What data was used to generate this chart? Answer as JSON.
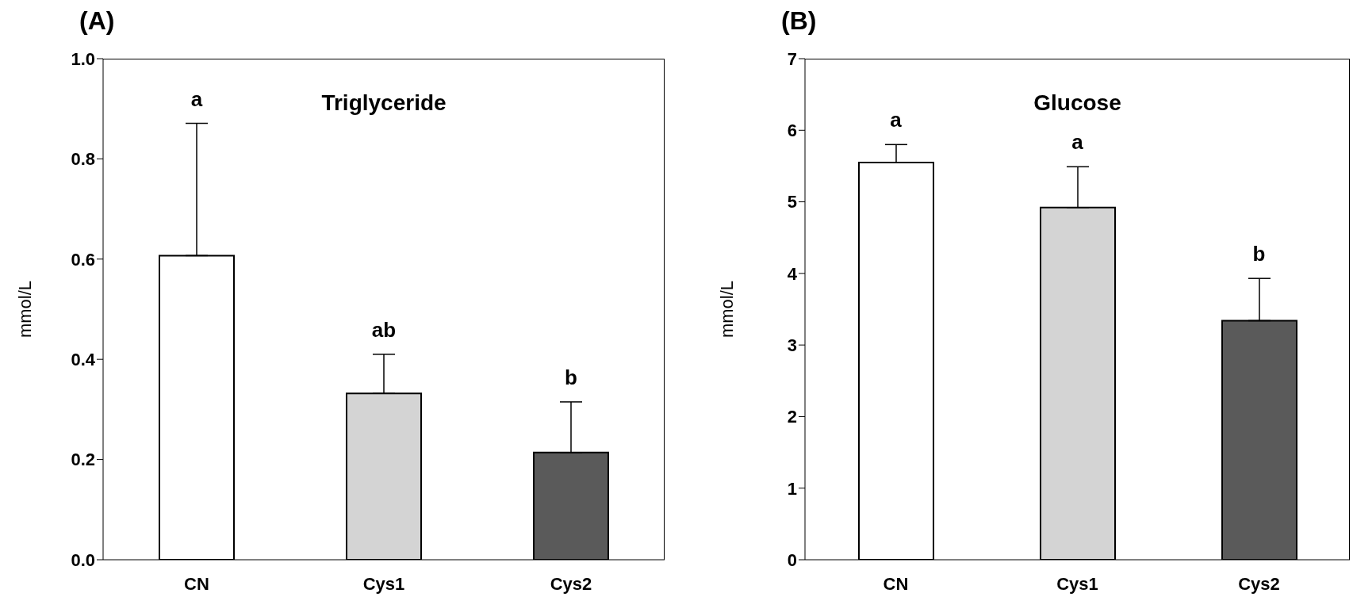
{
  "chart_data": [
    {
      "type": "bar",
      "title": "(A)",
      "subtitle": "Triglyceride",
      "ylabel": "mmol/L",
      "categories": [
        "CN",
        "Cys1",
        "Cys2"
      ],
      "values": [
        0.607,
        0.332,
        0.214
      ],
      "colors": [
        "#ffffff",
        "#d4d4d4",
        "#5a5a5a"
      ],
      "errors": [
        [
          0.607,
          0.871
        ],
        [
          0.332,
          0.41
        ],
        [
          0.214,
          0.315
        ]
      ],
      "ylim": [
        0,
        1
      ],
      "yticks": [
        {
          "value": 0,
          "label": "0.0"
        },
        0.2,
        0.4,
        0.6,
        0.8,
        {
          "value": 1,
          "label": "1.0"
        }
      ],
      "grid": false,
      "legend": false,
      "annotations": [
        {
          "text": "a",
          "x": "CN",
          "y": 0.871
        },
        {
          "text": "ab",
          "x": "Cys1",
          "y": 0.41
        },
        {
          "text": "b",
          "x": "Cys2",
          "y": 0.315
        }
      ]
    },
    {
      "type": "bar",
      "title": "(B)",
      "subtitle": "Glucose",
      "ylabel": "mmol/L",
      "categories": [
        "CN",
        "Cys1",
        "Cys2"
      ],
      "values": [
        5.55,
        4.92,
        3.34
      ],
      "colors": [
        "#ffffff",
        "#d4d4d4",
        "#5a5a5a"
      ],
      "errors": [
        [
          5.55,
          5.8
        ],
        [
          4.92,
          5.49
        ],
        [
          3.34,
          3.93
        ]
      ],
      "ylim": [
        0,
        7
      ],
      "yticks": [
        0,
        1,
        2,
        3,
        4,
        5,
        6,
        7
      ],
      "grid": false,
      "legend": false,
      "annotations": [
        {
          "text": "a",
          "x": "CN",
          "y": 5.8
        },
        {
          "text": "a",
          "x": "Cys1",
          "y": 5.49
        },
        {
          "text": "b",
          "x": "Cys2",
          "y": 3.93
        }
      ]
    }
  ]
}
